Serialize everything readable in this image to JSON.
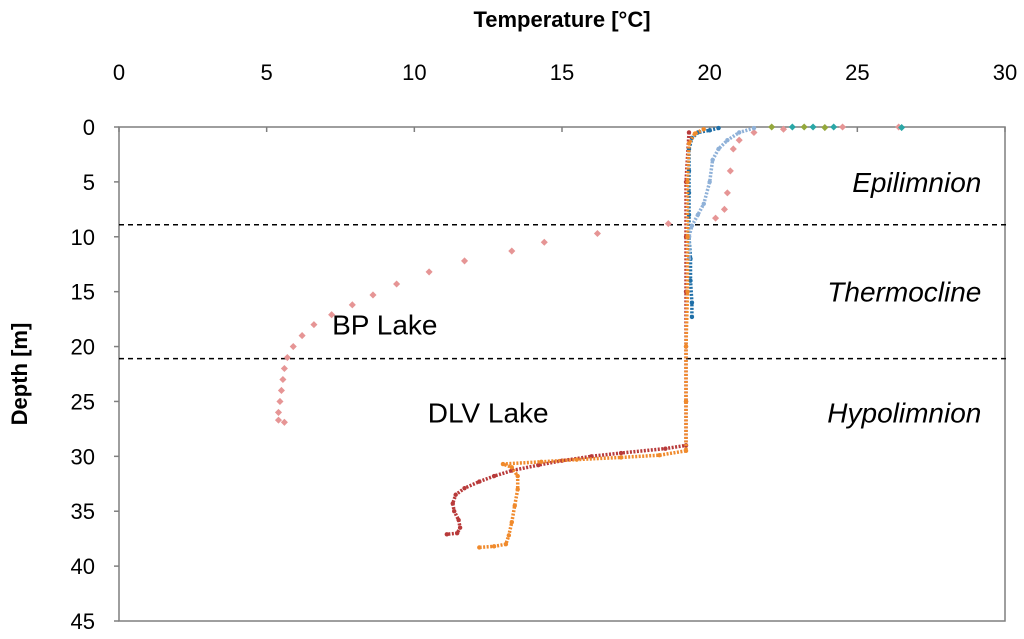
{
  "chart_data": {
    "type": "scatter",
    "xlabel": "Temperature [°C]",
    "ylabel": "Depth [m]",
    "x_axis_position": "top",
    "y_axis_reversed": true,
    "xlim": [
      0,
      30
    ],
    "ylim": [
      0,
      45
    ],
    "x_ticks": [
      "0",
      "5",
      "10",
      "15",
      "20",
      "25",
      "30"
    ],
    "y_ticks": [
      "0",
      "5",
      "10",
      "15",
      "20",
      "25",
      "30",
      "35",
      "40",
      "45"
    ],
    "grid": false,
    "legend": "none",
    "reference_lines": [
      {
        "orientation": "horizontal",
        "depth": 8.9,
        "style": "dashed"
      },
      {
        "orientation": "horizontal",
        "depth": 21.1,
        "style": "dashed"
      }
    ],
    "annotations": [
      {
        "text": "Epilimnion",
        "x": 24.5,
        "depth": 5,
        "style": "italic"
      },
      {
        "text": "Thermocline",
        "x": 24.5,
        "depth": 15,
        "style": "italic"
      },
      {
        "text": "Hypolimnion",
        "x": 24.5,
        "depth": 26,
        "style": "italic"
      },
      {
        "text": "BP Lake",
        "x": 9,
        "depth": 18,
        "style": "normal"
      },
      {
        "text": "DLV Lake",
        "x": 12.5,
        "depth": 26,
        "style": "normal"
      }
    ],
    "series": [
      {
        "color": "#e69595",
        "style": "dots",
        "points": [
          [
            26.4,
            0
          ],
          [
            24.5,
            0
          ],
          [
            22.5,
            0.2
          ],
          [
            21.5,
            0.5
          ],
          [
            21,
            1.2
          ],
          [
            20.8,
            2
          ],
          [
            20.7,
            4
          ],
          [
            20.6,
            6
          ],
          [
            20.5,
            7.5
          ],
          [
            20.2,
            8.3
          ],
          [
            18.6,
            8.8
          ],
          [
            16.2,
            9.7
          ],
          [
            14.4,
            10.5
          ],
          [
            13.3,
            11.3
          ],
          [
            11.7,
            12.2
          ],
          [
            10.5,
            13.2
          ],
          [
            9.4,
            14.3
          ],
          [
            8.6,
            15.3
          ],
          [
            7.9,
            16.2
          ],
          [
            7.2,
            17.1
          ],
          [
            6.6,
            18
          ],
          [
            6.2,
            19
          ],
          [
            5.9,
            20
          ],
          [
            5.7,
            21
          ],
          [
            5.6,
            22
          ],
          [
            5.55,
            23
          ],
          [
            5.5,
            24
          ],
          [
            5.45,
            25
          ],
          [
            5.4,
            26
          ],
          [
            5.4,
            26.7
          ],
          [
            5.6,
            26.9
          ]
        ]
      },
      {
        "color": "#1f6fa8",
        "style": "line",
        "points": [
          [
            20.3,
            0.1
          ],
          [
            20,
            0.3
          ],
          [
            19.6,
            0.5
          ],
          [
            19.4,
            1
          ],
          [
            19.3,
            2
          ],
          [
            19.3,
            4
          ],
          [
            19.3,
            6
          ],
          [
            19.3,
            8
          ],
          [
            19.3,
            10
          ],
          [
            19.35,
            12
          ],
          [
            19.35,
            14
          ],
          [
            19.4,
            16
          ],
          [
            19.4,
            17.3
          ]
        ]
      },
      {
        "color": "#8fb1d8",
        "style": "line",
        "points": [
          [
            21.5,
            0.1
          ],
          [
            21,
            0.5
          ],
          [
            20.6,
            1.2
          ],
          [
            20.3,
            2
          ],
          [
            20.1,
            3
          ],
          [
            20,
            5
          ],
          [
            19.8,
            7
          ],
          [
            19.6,
            8
          ],
          [
            19.4,
            9
          ],
          [
            19.3,
            10
          ],
          [
            19.3,
            12
          ]
        ]
      },
      {
        "color": "#2aa7a7",
        "style": "dots",
        "points": [
          [
            26.5,
            0.05
          ],
          [
            24.2,
            0
          ],
          [
            23.5,
            0
          ],
          [
            22.8,
            0
          ]
        ]
      },
      {
        "color": "#94a83c",
        "style": "dots",
        "points": [
          [
            23.9,
            0.05
          ],
          [
            23.2,
            0
          ],
          [
            22.1,
            0
          ]
        ]
      },
      {
        "color": "#b83a3a",
        "style": "line",
        "points": [
          [
            19.3,
            0.5
          ],
          [
            19.2,
            5
          ],
          [
            19.2,
            10
          ],
          [
            19.2,
            15
          ],
          [
            19.2,
            20
          ],
          [
            19.2,
            25
          ],
          [
            19.2,
            29
          ],
          [
            18.5,
            29.3
          ],
          [
            17,
            29.7
          ],
          [
            16,
            30
          ],
          [
            15,
            30.4
          ],
          [
            14.2,
            30.8
          ],
          [
            13.3,
            31.3
          ],
          [
            12.7,
            31.8
          ],
          [
            12.2,
            32.3
          ],
          [
            11.7,
            32.9
          ],
          [
            11.4,
            33.5
          ],
          [
            11.3,
            34.3
          ],
          [
            11.35,
            35
          ],
          [
            11.5,
            35.8
          ],
          [
            11.55,
            36.5
          ],
          [
            11.45,
            37
          ],
          [
            11.1,
            37.1
          ]
        ]
      },
      {
        "color": "#f08a2c",
        "style": "line",
        "points": [
          [
            19.8,
            0.2
          ],
          [
            19.5,
            0.6
          ],
          [
            19.3,
            1.5
          ],
          [
            19.25,
            5
          ],
          [
            19.25,
            10
          ],
          [
            19.25,
            15
          ],
          [
            19.2,
            20
          ],
          [
            19.2,
            25
          ],
          [
            19.2,
            29.5
          ],
          [
            18.3,
            29.9
          ],
          [
            17,
            30.1
          ],
          [
            15.5,
            30.3
          ],
          [
            14.3,
            30.5
          ],
          [
            13,
            30.7
          ],
          [
            13.3,
            31
          ],
          [
            13.5,
            31.8
          ],
          [
            13.5,
            33
          ],
          [
            13.4,
            34.5
          ],
          [
            13.3,
            36
          ],
          [
            13.2,
            37.2
          ],
          [
            13.1,
            38
          ],
          [
            12.7,
            38.2
          ],
          [
            12.2,
            38.3
          ]
        ]
      }
    ]
  }
}
